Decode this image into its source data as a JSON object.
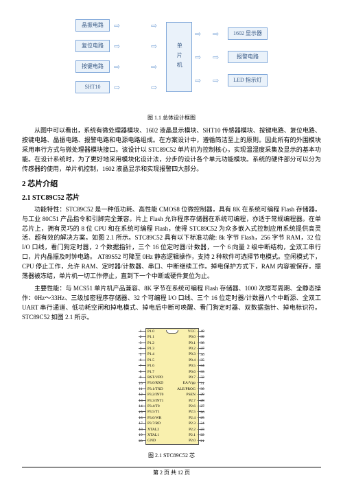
{
  "dia": {
    "left": [
      "晶振电路",
      "复位电路",
      "按键电路",
      "SHT10"
    ],
    "center": "单片机",
    "right": [
      "1602 显示器",
      "报警电路",
      "LED 指示灯"
    ],
    "caption": "图 1.1 总体设计框图"
  },
  "para1": "从图中可以看出，系统有微处理器模块、1602 液晶显示模块、SHT10 传感器模块、按键电路、复位电路、按键电路、晶振电路、报警电路和电源电路组成。在方案设计中，遵循简洁至上的原则。因此所有的外围模块采用串行方式与微处理器模块接口。该设计以 STC89C52 单片机为控制核心，实现温湿度采集及显示的基本功能。在设计系统时，为了更好地采用模块化设计法，分步的设计各个单元功能模块。系统的硬件部分可以分为传感器的使用，单片机控制，1602 液晶显示和实现报警四大部分。",
  "h2": "2 芯片介绍",
  "h3": "2.1 STC89C52 芯片",
  "para2": "功能特性：STC89C52 是一种低功耗、高性能 CMOS8 位微控制器，具有 8K 在系统可编程 Flash 存储器。与工业 80C51 产品指令和引脚完全兼容。片上 Flash 允许程序存储器在系统可编程，亦适于常规编程器。在单芯片上，拥有灵巧的 8 位 CPU 和在系统可编程 Flash，使得 STC89C52 为众多嵌入式控制应用系统提供高灵活、超有效的解决方案。如图 2.1 所示。STC89C52 具有以下标准功能: 8k 字节 Flash，256 字节 RAM，32 位 I/O 口线，看门狗定时器，2 个数据指针，三个 16 位定时器/计数器，一个 6 向量 2 级中断结构，全双工串行口，片内晶振及时钟电路。 AT89S52 可降至 0Hz 静态逻辑操作，支持 2 种软件可选择节电模式。空闲模式下，CPU 停止工作，允许 RAM、定时器/计数器、串口、中断继续工作。掉电保护方式下，RAM 内容被保存，振荡器被冻结，单片机一切工作停止，直到下一个中断或硬件复位为止。",
  "para3": "主要性能：与 MCS51 单片机产品兼容、8K 字节在系统可编程 Flash 存储器、1000 次擦写周期、全静态操作：0Hz～33Hz、三级加密程序存储器、32 个可编程 I/O 口线、三个 16 位定时器/计数器八个中断源、全双工 UART 串行通道、低功耗空闲和掉电模式、掉电后中断可唤醒、看门狗定时器、双数据指针、掉电标识符。STC89C52 如图 2.1 所示。",
  "chip": {
    "left_labels": [
      "P1.0",
      "P1.1",
      "P1.2",
      "P1.3",
      "P1.4",
      "P1.5",
      "P1.6",
      "P1.7",
      "RST/VPD",
      "P3.0/RXD",
      "P3.1/TXD",
      "P3.2/INT0",
      "P3.3/INT1",
      "P3.4/T0",
      "P3.5/T1",
      "P3.6/WR",
      "P3.7/RD",
      "XTAL2",
      "XTAL1",
      "GND"
    ],
    "right_labels": [
      "VCC",
      "P0.0",
      "P0.1",
      "P0.2",
      "P0.3",
      "P0.4",
      "P0.5",
      "P0.6",
      "P0.7",
      "EA/Vpp",
      "ALE/PROG",
      "PSEN",
      "P2.7",
      "P2.6",
      "P2.5",
      "P2.4",
      "P2.3",
      "P2.2",
      "P2.1",
      "P2.0"
    ],
    "caption": "图 2.1  STC89C52 芯"
  },
  "footer": "第 2 页 共 12 页"
}
